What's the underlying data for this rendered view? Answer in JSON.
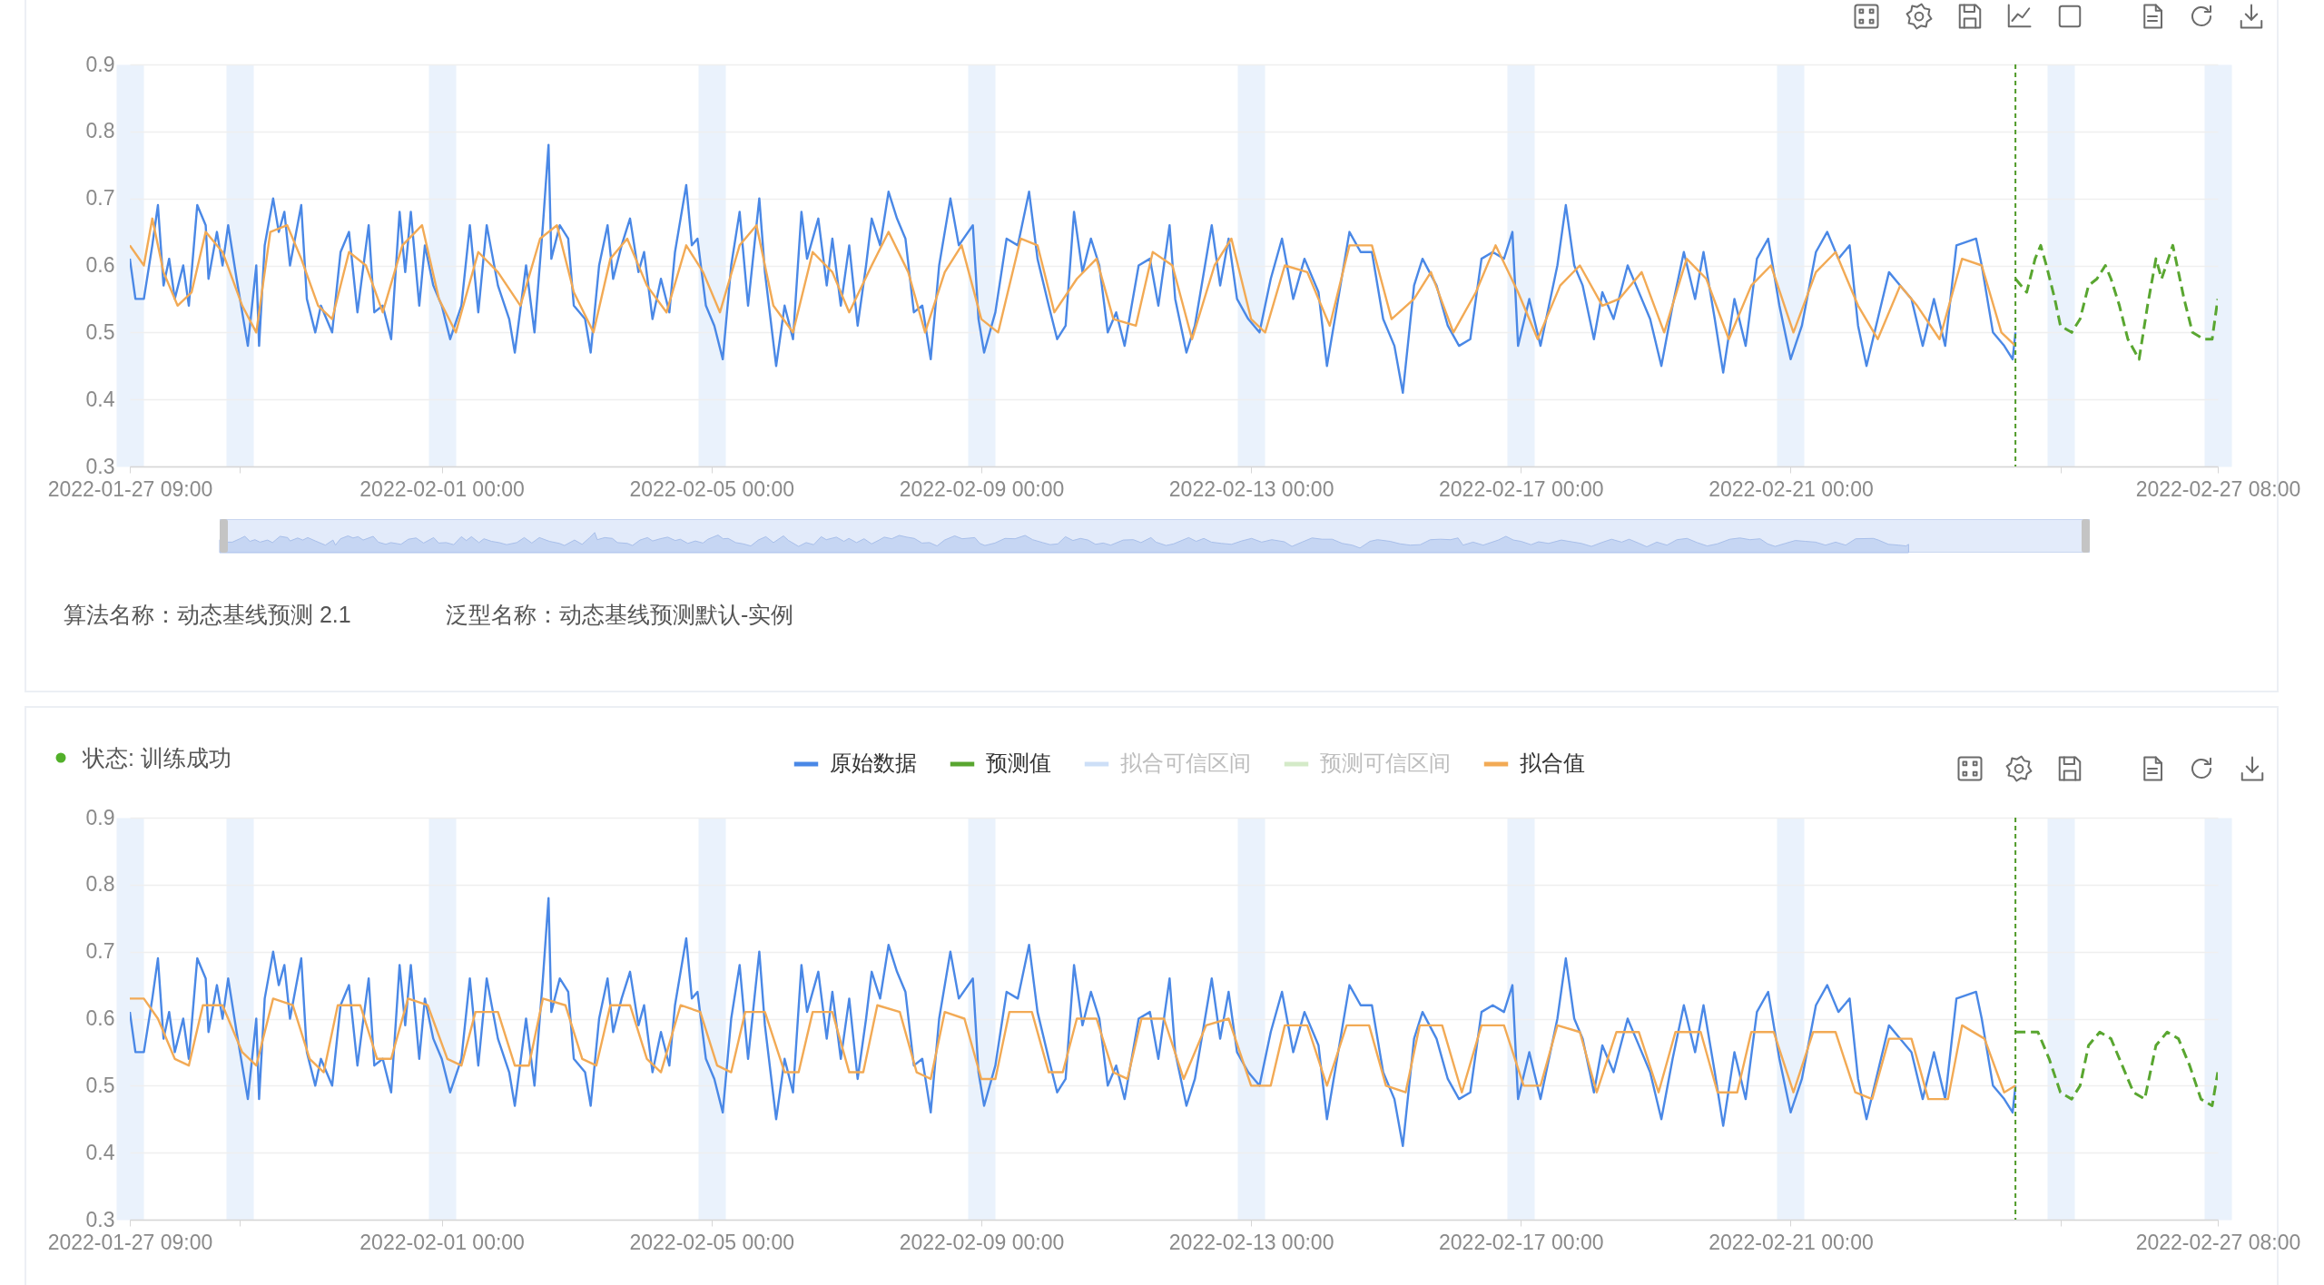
{
  "chart_data": [
    {
      "type": "line",
      "annotations": [
        "算法名称：动态基线预测 2.1",
        "泛型名称：动态基线预测默认-实例"
      ],
      "xlim": [
        "2022-01-27T09:00",
        "2022-02-27T08:00"
      ],
      "xticks": [
        {
          "value": "2022-01-27T09:00",
          "label": "2022-01-27 09:00"
        },
        {
          "value": "2022-01-29T00:00",
          "label": null
        },
        {
          "value": "2022-02-01T00:00",
          "label": "2022-02-01 00:00"
        },
        {
          "value": "2022-02-05T00:00",
          "label": "2022-02-05 00:00"
        },
        {
          "value": "2022-02-09T00:00",
          "label": "2022-02-09 00:00"
        },
        {
          "value": "2022-02-13T00:00",
          "label": "2022-02-13 00:00"
        },
        {
          "value": "2022-02-17T00:00",
          "label": "2022-02-17 00:00"
        },
        {
          "value": "2022-02-21T00:00",
          "label": "2022-02-21 00:00"
        },
        {
          "value": "2022-02-25T00:00",
          "label": null
        },
        {
          "value": "2022-02-27T08:00",
          "label": "2022-02-27 08:00"
        }
      ],
      "ylim": [
        0.3,
        0.9
      ],
      "yticks": [
        0.3,
        0.4,
        0.5,
        0.6,
        0.7,
        0.8,
        0.9
      ],
      "grid": true,
      "ref_lines": [
        {
          "axis": "x",
          "value": "2022-02-24T08:00",
          "color": "#4f9a28",
          "line_style": "dashed"
        }
      ],
      "series": [
        {
          "color": "#4a88e6",
          "x": [
            "2022-01-27T09:00",
            "2022-01-27T11:00",
            "2022-01-27T14:00",
            "2022-01-27T17:00",
            "2022-01-27T19:00",
            "2022-01-27T21:00",
            "2022-01-27T23:00",
            "2022-01-28T01:00",
            "2022-01-28T04:00",
            "2022-01-28T06:00",
            "2022-01-28T09:00",
            "2022-01-28T12:00",
            "2022-01-28T13:00",
            "2022-01-28T16:00",
            "2022-01-28T18:00",
            "2022-01-28T20:00",
            "2022-01-28T23:00",
            "2022-01-29T03:00",
            "2022-01-29T06:00",
            "2022-01-29T07:00",
            "2022-01-29T09:00",
            "2022-01-29T12:00",
            "2022-01-29T14:00",
            "2022-01-29T16:00",
            "2022-01-29T18:00",
            "2022-01-29T22:00",
            "2022-01-30T00:00",
            "2022-01-30T03:00",
            "2022-01-30T05:00",
            "2022-01-30T09:00",
            "2022-01-30T12:00",
            "2022-01-30T15:00",
            "2022-01-30T18:00",
            "2022-01-30T22:00",
            "2022-01-31T00:00",
            "2022-01-31T03:00",
            "2022-01-31T06:00",
            "2022-01-31T09:00",
            "2022-01-31T11:00",
            "2022-01-31T13:00",
            "2022-01-31T16:00",
            "2022-01-31T18:00",
            "2022-01-31T21:00",
            "2022-02-01T00:00",
            "2022-02-01T03:00",
            "2022-02-01T07:00",
            "2022-02-01T10:00",
            "2022-02-01T13:00",
            "2022-02-01T16:00",
            "2022-02-01T20:00",
            "2022-02-02T00:00",
            "2022-02-02T02:00",
            "2022-02-02T06:00",
            "2022-02-02T09:00",
            "2022-02-02T12:00",
            "2022-02-02T14:00",
            "2022-02-02T15:00",
            "2022-02-02T18:00",
            "2022-02-02T21:00",
            "2022-02-02T23:00",
            "2022-02-03T03:00",
            "2022-02-03T05:00",
            "2022-02-03T08:00",
            "2022-02-03T11:00",
            "2022-02-03T13:00",
            "2022-02-03T16:00",
            "2022-02-03T19:00",
            "2022-02-03T22:00",
            "2022-02-04T00:00",
            "2022-02-04T03:00",
            "2022-02-04T06:00",
            "2022-02-04T09:00",
            "2022-02-04T11:00",
            "2022-02-04T15:00",
            "2022-02-04T17:00",
            "2022-02-04T19:00",
            "2022-02-04T22:00",
            "2022-02-05T01:00",
            "2022-02-05T04:00",
            "2022-02-05T07:00",
            "2022-02-05T10:00",
            "2022-02-05T13:00",
            "2022-02-05T17:00",
            "2022-02-05T19:00",
            "2022-02-05T23:00",
            "2022-02-06T02:00",
            "2022-02-06T05:00",
            "2022-02-06T08:00",
            "2022-02-06T10:00",
            "2022-02-06T14:00",
            "2022-02-06T17:00",
            "2022-02-06T19:00",
            "2022-02-06T22:00",
            "2022-02-07T01:00",
            "2022-02-07T04:00",
            "2022-02-07T07:00",
            "2022-02-07T09:00",
            "2022-02-07T12:00",
            "2022-02-07T15:00",
            "2022-02-07T18:00",
            "2022-02-07T21:00",
            "2022-02-08T00:00",
            "2022-02-08T03:00",
            "2022-02-08T06:00",
            "2022-02-08T09:00",
            "2022-02-08T13:00",
            "2022-02-08T16:00",
            "2022-02-08T21:00",
            "2022-02-08T23:00",
            "2022-02-09T01:00",
            "2022-02-09T05:00",
            "2022-02-09T09:00",
            "2022-02-09T13:00",
            "2022-02-09T17:00",
            "2022-02-09T20:00",
            "2022-02-10T00:00",
            "2022-02-10T03:00",
            "2022-02-10T06:00",
            "2022-02-10T09:00",
            "2022-02-10T12:00",
            "2022-02-10T15:00",
            "2022-02-10T18:00",
            "2022-02-10T21:00",
            "2022-02-11T00:00",
            "2022-02-11T03:00",
            "2022-02-11T08:00",
            "2022-02-11T12:00",
            "2022-02-11T15:00",
            "2022-02-11T19:00",
            "2022-02-11T21:00",
            "2022-02-12T01:00",
            "2022-02-12T04:00",
            "2022-02-12T10:00",
            "2022-02-12T13:00",
            "2022-02-12T16:00",
            "2022-02-12T19:00",
            "2022-02-12T23:00",
            "2022-02-13T03:00",
            "2022-02-13T07:00",
            "2022-02-13T11:00",
            "2022-02-13T15:00",
            "2022-02-13T19:00",
            "2022-02-14T00:00",
            "2022-02-14T03:00",
            "2022-02-14T07:00",
            "2022-02-14T11:00",
            "2022-02-14T15:00",
            "2022-02-14T19:00",
            "2022-02-14T23:00",
            "2022-02-15T03:00",
            "2022-02-15T06:00",
            "2022-02-15T10:00",
            "2022-02-15T13:00",
            "2022-02-15T18:00",
            "2022-02-15T22:00",
            "2022-02-16T02:00",
            "2022-02-16T06:00",
            "2022-02-16T10:00",
            "2022-02-16T14:00",
            "2022-02-16T18:00",
            "2022-02-16T21:00",
            "2022-02-16T23:00",
            "2022-02-17T03:00",
            "2022-02-17T07:00",
            "2022-02-17T13:00",
            "2022-02-17T16:00",
            "2022-02-17T19:00",
            "2022-02-17T22:00",
            "2022-02-18T02:00",
            "2022-02-18T05:00",
            "2022-02-18T09:00",
            "2022-02-18T14:00",
            "2022-02-18T17:00",
            "2022-02-18T22:00",
            "2022-02-19T02:00",
            "2022-02-19T06:00",
            "2022-02-19T10:00",
            "2022-02-19T14:00",
            "2022-02-19T17:00",
            "2022-02-19T21:00",
            "2022-02-20T00:00",
            "2022-02-20T04:00",
            "2022-02-20T08:00",
            "2022-02-20T12:00",
            "2022-02-20T16:00",
            "2022-02-20T20:00",
            "2022-02-21T00:00",
            "2022-02-21T04:00",
            "2022-02-21T09:00",
            "2022-02-21T13:00",
            "2022-02-21T17:00",
            "2022-02-21T21:00",
            "2022-02-22T00:00",
            "2022-02-22T03:00",
            "2022-02-22T07:00",
            "2022-02-22T11:00",
            "2022-02-22T15:00",
            "2022-02-22T19:00",
            "2022-02-22T23:00",
            "2022-02-23T03:00",
            "2022-02-23T07:00",
            "2022-02-23T11:00",
            "2022-02-23T18:00",
            "2022-02-23T20:00",
            "2022-02-24T00:00",
            "2022-02-24T04:00",
            "2022-02-24T07:00",
            "2022-02-24T08:00"
          ],
          "values": [
            0.61,
            0.55,
            0.55,
            0.63,
            0.69,
            0.57,
            0.61,
            0.55,
            0.6,
            0.54,
            0.69,
            0.66,
            0.58,
            0.65,
            0.6,
            0.66,
            0.58,
            0.48,
            0.6,
            0.48,
            0.63,
            0.7,
            0.65,
            0.68,
            0.6,
            0.69,
            0.55,
            0.5,
            0.54,
            0.5,
            0.62,
            0.65,
            0.53,
            0.66,
            0.53,
            0.54,
            0.49,
            0.68,
            0.59,
            0.68,
            0.54,
            0.63,
            0.57,
            0.54,
            0.49,
            0.54,
            0.66,
            0.53,
            0.66,
            0.57,
            0.52,
            0.47,
            0.6,
            0.5,
            0.66,
            0.78,
            0.61,
            0.66,
            0.64,
            0.54,
            0.52,
            0.47,
            0.6,
            0.66,
            0.58,
            0.63,
            0.67,
            0.59,
            0.62,
            0.52,
            0.58,
            0.53,
            0.62,
            0.72,
            0.63,
            0.64,
            0.54,
            0.51,
            0.46,
            0.6,
            0.68,
            0.54,
            0.7,
            0.59,
            0.45,
            0.54,
            0.49,
            0.68,
            0.61,
            0.67,
            0.57,
            0.64,
            0.54,
            0.63,
            0.51,
            0.6,
            0.67,
            0.63,
            0.71,
            0.67,
            0.64,
            0.53,
            0.54,
            0.46,
            0.6,
            0.7,
            0.63,
            0.66,
            0.52,
            0.47,
            0.53,
            0.64,
            0.63,
            0.71,
            0.61,
            0.54,
            0.49,
            0.51,
            0.68,
            0.59,
            0.64,
            0.6,
            0.5,
            0.53,
            0.48,
            0.6,
            0.61,
            0.54,
            0.66,
            0.55,
            0.47,
            0.51,
            0.66,
            0.57,
            0.64,
            0.55,
            0.52,
            0.5,
            0.58,
            0.64,
            0.55,
            0.61,
            0.56,
            0.45,
            0.55,
            0.65,
            0.62,
            0.62,
            0.52,
            0.48,
            0.41,
            0.57,
            0.61,
            0.57,
            0.51,
            0.48,
            0.49,
            0.61,
            0.62,
            0.61,
            0.65,
            0.48,
            0.55,
            0.48,
            0.6,
            0.69,
            0.6,
            0.57,
            0.49,
            0.56,
            0.52,
            0.6,
            0.57,
            0.52,
            0.45,
            0.54,
            0.62,
            0.55,
            0.62,
            0.52,
            0.44,
            0.55,
            0.48,
            0.61,
            0.64,
            0.54,
            0.46,
            0.51,
            0.62,
            0.65,
            0.61,
            0.63,
            0.51,
            0.45,
            0.52,
            0.59,
            0.57,
            0.55,
            0.48,
            0.55,
            0.48,
            0.63,
            0.64,
            0.6,
            0.5,
            0.48,
            0.46,
            0.5
          ]
        },
        {
          "color": "#59a630",
          "line_style": "dashed",
          "x": [
            "2022-02-24T08:00",
            "2022-02-24T12:00",
            "2022-02-24T15:00",
            "2022-02-24T17:00",
            "2022-02-24T19:00",
            "2022-02-24T22:00",
            "2022-02-25T00:00",
            "2022-02-25T04:00",
            "2022-02-25T07:00",
            "2022-02-25T10:00",
            "2022-02-25T13:00",
            "2022-02-25T16:00",
            "2022-02-25T18:00",
            "2022-02-25T21:00",
            "2022-02-26T00:00",
            "2022-02-26T04:00",
            "2022-02-26T07:00",
            "2022-02-26T10:00",
            "2022-02-26T12:00",
            "2022-02-26T16:00",
            "2022-02-26T20:00",
            "2022-02-26T23:00",
            "2022-02-27T03:00",
            "2022-02-27T06:00",
            "2022-02-27T08:00"
          ],
          "values": [
            0.58,
            0.56,
            0.61,
            0.63,
            0.6,
            0.55,
            0.51,
            0.5,
            0.52,
            0.57,
            0.58,
            0.6,
            0.58,
            0.54,
            0.49,
            0.46,
            0.54,
            0.61,
            0.58,
            0.63,
            0.55,
            0.5,
            0.49,
            0.49,
            0.55
          ]
        },
        {
          "color": "#f2aa55",
          "x": [
            "2022-01-27T09:00",
            "2022-01-27T14:00",
            "2022-01-27T17:00",
            "2022-01-27T21:00",
            "2022-01-28T02:00",
            "2022-01-28T07:00",
            "2022-01-28T12:00",
            "2022-01-28T18:00",
            "2022-01-29T01:00",
            "2022-01-29T06:00",
            "2022-01-29T11:00",
            "2022-01-29T17:00",
            "2022-01-29T22:00",
            "2022-01-30T04:00",
            "2022-01-30T09:00",
            "2022-01-30T15:00",
            "2022-01-30T21:00",
            "2022-01-31T03:00",
            "2022-01-31T10:00",
            "2022-01-31T17:00",
            "2022-01-31T23:00",
            "2022-02-01T05:00",
            "2022-02-01T13:00",
            "2022-02-01T20:00",
            "2022-02-02T04:00",
            "2022-02-02T11:00",
            "2022-02-02T17:00",
            "2022-02-02T23:00",
            "2022-02-03T06:00",
            "2022-02-03T12:00",
            "2022-02-03T18:00",
            "2022-02-04T01:00",
            "2022-02-04T08:00",
            "2022-02-04T15:00",
            "2022-02-04T21:00",
            "2022-02-05T03:00",
            "2022-02-05T10:00",
            "2022-02-05T16:00",
            "2022-02-05T22:00",
            "2022-02-06T05:00",
            "2022-02-06T12:00",
            "2022-02-06T19:00",
            "2022-02-07T01:00",
            "2022-02-07T09:00",
            "2022-02-07T15:00",
            "2022-02-07T22:00",
            "2022-02-08T04:00",
            "2022-02-08T11:00",
            "2022-02-08T17:00",
            "2022-02-09T00:00",
            "2022-02-09T06:00",
            "2022-02-09T14:00",
            "2022-02-09T20:00",
            "2022-02-10T02:00",
            "2022-02-10T10:00",
            "2022-02-10T17:00",
            "2022-02-10T23:00",
            "2022-02-11T07:00",
            "2022-02-11T13:00",
            "2022-02-11T20:00",
            "2022-02-12T03:00",
            "2022-02-12T11:00",
            "2022-02-12T17:00",
            "2022-02-13T00:00",
            "2022-02-13T05:00",
            "2022-02-13T12:00",
            "2022-02-13T20:00",
            "2022-02-14T04:00",
            "2022-02-14T11:00",
            "2022-02-14T19:00",
            "2022-02-15T02:00",
            "2022-02-15T10:00",
            "2022-02-15T16:00",
            "2022-02-16T00:00",
            "2022-02-16T08:00",
            "2022-02-16T15:00",
            "2022-02-16T23:00",
            "2022-02-17T06:00",
            "2022-02-17T14:00",
            "2022-02-17T21:00",
            "2022-02-18T05:00",
            "2022-02-18T11:00",
            "2022-02-18T19:00",
            "2022-02-19T03:00",
            "2022-02-19T11:00",
            "2022-02-19T18:00",
            "2022-02-20T02:00",
            "2022-02-20T10:00",
            "2022-02-20T17:00",
            "2022-02-21T01:00",
            "2022-02-21T09:00",
            "2022-02-21T16:00",
            "2022-02-22T00:00",
            "2022-02-22T07:00",
            "2022-02-22T15:00",
            "2022-02-22T21:00",
            "2022-02-23T05:00",
            "2022-02-23T13:00",
            "2022-02-23T20:00",
            "2022-02-24T03:00",
            "2022-02-24T08:00"
          ],
          "values": [
            0.63,
            0.6,
            0.67,
            0.59,
            0.54,
            0.56,
            0.65,
            0.62,
            0.54,
            0.5,
            0.65,
            0.66,
            0.61,
            0.54,
            0.52,
            0.62,
            0.6,
            0.53,
            0.63,
            0.66,
            0.55,
            0.5,
            0.62,
            0.59,
            0.54,
            0.64,
            0.66,
            0.56,
            0.5,
            0.61,
            0.64,
            0.57,
            0.53,
            0.63,
            0.59,
            0.53,
            0.63,
            0.66,
            0.54,
            0.5,
            0.62,
            0.59,
            0.53,
            0.6,
            0.65,
            0.59,
            0.5,
            0.59,
            0.63,
            0.52,
            0.5,
            0.64,
            0.63,
            0.53,
            0.58,
            0.61,
            0.52,
            0.51,
            0.62,
            0.6,
            0.49,
            0.6,
            0.64,
            0.52,
            0.5,
            0.6,
            0.59,
            0.51,
            0.63,
            0.63,
            0.52,
            0.55,
            0.59,
            0.5,
            0.56,
            0.63,
            0.56,
            0.49,
            0.57,
            0.6,
            0.54,
            0.55,
            0.59,
            0.5,
            0.61,
            0.58,
            0.49,
            0.57,
            0.6,
            0.5,
            0.59,
            0.62,
            0.54,
            0.49,
            0.57,
            0.54,
            0.49,
            0.61,
            0.6,
            0.5,
            0.48
          ]
        }
      ]
    },
    {
      "type": "line",
      "annotations": [
        "状态: 训练成功"
      ],
      "legend": "top",
      "xlim": [
        "2022-01-27T09:00",
        "2022-02-27T08:00"
      ],
      "xticks": [
        {
          "value": "2022-01-27T09:00",
          "label": "2022-01-27 09:00"
        },
        {
          "value": "2022-01-29T00:00",
          "label": null
        },
        {
          "value": "2022-02-01T00:00",
          "label": "2022-02-01 00:00"
        },
        {
          "value": "2022-02-05T00:00",
          "label": "2022-02-05 00:00"
        },
        {
          "value": "2022-02-09T00:00",
          "label": "2022-02-09 00:00"
        },
        {
          "value": "2022-02-13T00:00",
          "label": "2022-02-13 00:00"
        },
        {
          "value": "2022-02-17T00:00",
          "label": "2022-02-17 00:00"
        },
        {
          "value": "2022-02-21T00:00",
          "label": "2022-02-21 00:00"
        },
        {
          "value": "2022-02-25T00:00",
          "label": null
        },
        {
          "value": "2022-02-27T08:00",
          "label": "2022-02-27 08:00"
        }
      ],
      "ylim": [
        0.3,
        0.9
      ],
      "yticks": [
        0.3,
        0.4,
        0.5,
        0.6,
        0.7,
        0.8,
        0.9
      ],
      "grid": true,
      "ref_lines": [
        {
          "axis": "x",
          "value": "2022-02-24T08:00",
          "color": "#4f9a28",
          "line_style": "dashed"
        }
      ],
      "series": [
        {
          "name": "原始数据",
          "color": "#4a88e6",
          "x": [
            "2022-01-27T09:00",
            "2022-01-27T11:00",
            "2022-01-27T14:00",
            "2022-01-27T17:00",
            "2022-01-27T19:00",
            "2022-01-27T21:00",
            "2022-01-27T23:00",
            "2022-01-28T01:00",
            "2022-01-28T04:00",
            "2022-01-28T06:00",
            "2022-01-28T09:00",
            "2022-01-28T12:00",
            "2022-01-28T13:00",
            "2022-01-28T16:00",
            "2022-01-28T18:00",
            "2022-01-28T20:00",
            "2022-01-28T23:00",
            "2022-01-29T03:00",
            "2022-01-29T06:00",
            "2022-01-29T07:00",
            "2022-01-29T09:00",
            "2022-01-29T12:00",
            "2022-01-29T14:00",
            "2022-01-29T16:00",
            "2022-01-29T18:00",
            "2022-01-29T22:00",
            "2022-01-30T00:00",
            "2022-01-30T03:00",
            "2022-01-30T05:00",
            "2022-01-30T09:00",
            "2022-01-30T12:00",
            "2022-01-30T15:00",
            "2022-01-30T18:00",
            "2022-01-30T22:00",
            "2022-01-31T00:00",
            "2022-01-31T03:00",
            "2022-01-31T06:00",
            "2022-01-31T09:00",
            "2022-01-31T11:00",
            "2022-01-31T13:00",
            "2022-01-31T16:00",
            "2022-01-31T18:00",
            "2022-01-31T21:00",
            "2022-02-01T00:00",
            "2022-02-01T03:00",
            "2022-02-01T07:00",
            "2022-02-01T10:00",
            "2022-02-01T13:00",
            "2022-02-01T16:00",
            "2022-02-01T20:00",
            "2022-02-02T00:00",
            "2022-02-02T02:00",
            "2022-02-02T06:00",
            "2022-02-02T09:00",
            "2022-02-02T12:00",
            "2022-02-02T14:00",
            "2022-02-02T15:00",
            "2022-02-02T18:00",
            "2022-02-02T21:00",
            "2022-02-02T23:00",
            "2022-02-03T03:00",
            "2022-02-03T05:00",
            "2022-02-03T08:00",
            "2022-02-03T11:00",
            "2022-02-03T13:00",
            "2022-02-03T16:00",
            "2022-02-03T19:00",
            "2022-02-03T22:00",
            "2022-02-04T00:00",
            "2022-02-04T03:00",
            "2022-02-04T06:00",
            "2022-02-04T09:00",
            "2022-02-04T11:00",
            "2022-02-04T15:00",
            "2022-02-04T17:00",
            "2022-02-04T19:00",
            "2022-02-04T22:00",
            "2022-02-05T01:00",
            "2022-02-05T04:00",
            "2022-02-05T07:00",
            "2022-02-05T10:00",
            "2022-02-05T13:00",
            "2022-02-05T17:00",
            "2022-02-05T19:00",
            "2022-02-05T23:00",
            "2022-02-06T02:00",
            "2022-02-06T05:00",
            "2022-02-06T08:00",
            "2022-02-06T10:00",
            "2022-02-06T14:00",
            "2022-02-06T17:00",
            "2022-02-06T19:00",
            "2022-02-06T22:00",
            "2022-02-07T01:00",
            "2022-02-07T04:00",
            "2022-02-07T07:00",
            "2022-02-07T09:00",
            "2022-02-07T12:00",
            "2022-02-07T15:00",
            "2022-02-07T18:00",
            "2022-02-07T21:00",
            "2022-02-08T00:00",
            "2022-02-08T03:00",
            "2022-02-08T06:00",
            "2022-02-08T09:00",
            "2022-02-08T13:00",
            "2022-02-08T16:00",
            "2022-02-08T21:00",
            "2022-02-08T23:00",
            "2022-02-09T01:00",
            "2022-02-09T05:00",
            "2022-02-09T09:00",
            "2022-02-09T13:00",
            "2022-02-09T17:00",
            "2022-02-09T20:00",
            "2022-02-10T00:00",
            "2022-02-10T03:00",
            "2022-02-10T06:00",
            "2022-02-10T09:00",
            "2022-02-10T12:00",
            "2022-02-10T15:00",
            "2022-02-10T18:00",
            "2022-02-10T21:00",
            "2022-02-11T00:00",
            "2022-02-11T03:00",
            "2022-02-11T08:00",
            "2022-02-11T12:00",
            "2022-02-11T15:00",
            "2022-02-11T19:00",
            "2022-02-11T21:00",
            "2022-02-12T01:00",
            "2022-02-12T04:00",
            "2022-02-12T10:00",
            "2022-02-12T13:00",
            "2022-02-12T16:00",
            "2022-02-12T19:00",
            "2022-02-12T23:00",
            "2022-02-13T03:00",
            "2022-02-13T07:00",
            "2022-02-13T11:00",
            "2022-02-13T15:00",
            "2022-02-13T19:00",
            "2022-02-14T00:00",
            "2022-02-14T03:00",
            "2022-02-14T07:00",
            "2022-02-14T11:00",
            "2022-02-14T15:00",
            "2022-02-14T19:00",
            "2022-02-14T23:00",
            "2022-02-15T03:00",
            "2022-02-15T06:00",
            "2022-02-15T10:00",
            "2022-02-15T13:00",
            "2022-02-15T18:00",
            "2022-02-15T22:00",
            "2022-02-16T02:00",
            "2022-02-16T06:00",
            "2022-02-16T10:00",
            "2022-02-16T14:00",
            "2022-02-16T18:00",
            "2022-02-16T21:00",
            "2022-02-16T23:00",
            "2022-02-17T03:00",
            "2022-02-17T07:00",
            "2022-02-17T13:00",
            "2022-02-17T16:00",
            "2022-02-17T19:00",
            "2022-02-17T22:00",
            "2022-02-18T02:00",
            "2022-02-18T05:00",
            "2022-02-18T09:00",
            "2022-02-18T14:00",
            "2022-02-18T17:00",
            "2022-02-18T22:00",
            "2022-02-19T02:00",
            "2022-02-19T06:00",
            "2022-02-19T10:00",
            "2022-02-19T14:00",
            "2022-02-19T17:00",
            "2022-02-19T21:00",
            "2022-02-20T00:00",
            "2022-02-20T04:00",
            "2022-02-20T08:00",
            "2022-02-20T12:00",
            "2022-02-20T16:00",
            "2022-02-20T20:00",
            "2022-02-21T00:00",
            "2022-02-21T04:00",
            "2022-02-21T09:00",
            "2022-02-21T13:00",
            "2022-02-21T17:00",
            "2022-02-21T21:00",
            "2022-02-22T00:00",
            "2022-02-22T03:00",
            "2022-02-22T07:00",
            "2022-02-22T11:00",
            "2022-02-22T15:00",
            "2022-02-22T19:00",
            "2022-02-22T23:00",
            "2022-02-23T03:00",
            "2022-02-23T07:00",
            "2022-02-23T11:00",
            "2022-02-23T18:00",
            "2022-02-23T20:00",
            "2022-02-24T00:00",
            "2022-02-24T04:00",
            "2022-02-24T07:00",
            "2022-02-24T08:00"
          ],
          "values": [
            0.61,
            0.55,
            0.55,
            0.63,
            0.69,
            0.57,
            0.61,
            0.55,
            0.6,
            0.54,
            0.69,
            0.66,
            0.58,
            0.65,
            0.6,
            0.66,
            0.58,
            0.48,
            0.6,
            0.48,
            0.63,
            0.7,
            0.65,
            0.68,
            0.6,
            0.69,
            0.55,
            0.5,
            0.54,
            0.5,
            0.62,
            0.65,
            0.53,
            0.66,
            0.53,
            0.54,
            0.49,
            0.68,
            0.59,
            0.68,
            0.54,
            0.63,
            0.57,
            0.54,
            0.49,
            0.54,
            0.66,
            0.53,
            0.66,
            0.57,
            0.52,
            0.47,
            0.6,
            0.5,
            0.66,
            0.78,
            0.61,
            0.66,
            0.64,
            0.54,
            0.52,
            0.47,
            0.6,
            0.66,
            0.58,
            0.63,
            0.67,
            0.59,
            0.62,
            0.52,
            0.58,
            0.53,
            0.62,
            0.72,
            0.63,
            0.64,
            0.54,
            0.51,
            0.46,
            0.6,
            0.68,
            0.54,
            0.7,
            0.59,
            0.45,
            0.54,
            0.49,
            0.68,
            0.61,
            0.67,
            0.57,
            0.64,
            0.54,
            0.63,
            0.51,
            0.6,
            0.67,
            0.63,
            0.71,
            0.67,
            0.64,
            0.53,
            0.54,
            0.46,
            0.6,
            0.7,
            0.63,
            0.66,
            0.52,
            0.47,
            0.53,
            0.64,
            0.63,
            0.71,
            0.61,
            0.54,
            0.49,
            0.51,
            0.68,
            0.59,
            0.64,
            0.6,
            0.5,
            0.53,
            0.48,
            0.6,
            0.61,
            0.54,
            0.66,
            0.55,
            0.47,
            0.51,
            0.66,
            0.57,
            0.64,
            0.55,
            0.52,
            0.5,
            0.58,
            0.64,
            0.55,
            0.61,
            0.56,
            0.45,
            0.55,
            0.65,
            0.62,
            0.62,
            0.52,
            0.48,
            0.41,
            0.57,
            0.61,
            0.57,
            0.51,
            0.48,
            0.49,
            0.61,
            0.62,
            0.61,
            0.65,
            0.48,
            0.55,
            0.48,
            0.6,
            0.69,
            0.6,
            0.57,
            0.49,
            0.56,
            0.52,
            0.6,
            0.57,
            0.52,
            0.45,
            0.54,
            0.62,
            0.55,
            0.62,
            0.52,
            0.44,
            0.55,
            0.48,
            0.61,
            0.64,
            0.54,
            0.46,
            0.51,
            0.62,
            0.65,
            0.61,
            0.63,
            0.51,
            0.45,
            0.52,
            0.59,
            0.57,
            0.55,
            0.48,
            0.55,
            0.48,
            0.63,
            0.64,
            0.6,
            0.5,
            0.48,
            0.46,
            0.5
          ]
        },
        {
          "name": "预测值",
          "color": "#59a630",
          "line_style": "dashed",
          "x": [
            "2022-02-24T08:00",
            "2022-02-24T12:00",
            "2022-02-24T16:00",
            "2022-02-24T20:00",
            "2022-02-25T00:00",
            "2022-02-25T04:00",
            "2022-02-25T07:00",
            "2022-02-25T10:00",
            "2022-02-25T14:00",
            "2022-02-25T18:00",
            "2022-02-25T22:00",
            "2022-02-26T02:00",
            "2022-02-26T06:00",
            "2022-02-26T10:00",
            "2022-02-26T14:00",
            "2022-02-26T18:00",
            "2022-02-26T22:00",
            "2022-02-27T02:00",
            "2022-02-27T06:00",
            "2022-02-27T08:00"
          ],
          "values": [
            0.58,
            0.58,
            0.58,
            0.54,
            0.49,
            0.48,
            0.5,
            0.56,
            0.58,
            0.57,
            0.53,
            0.49,
            0.48,
            0.56,
            0.58,
            0.57,
            0.53,
            0.48,
            0.47,
            0.52
          ]
        },
        {
          "name": "拟合可信区间",
          "color": "#cddff7"
        },
        {
          "name": "预测可信区间",
          "color": "#d4eac8"
        },
        {
          "name": "拟合值",
          "color": "#f2aa55",
          "x": [
            "2022-01-27T09:00",
            "2022-01-27T14:00",
            "2022-01-27T19:00",
            "2022-01-28T01:00",
            "2022-01-28T06:00",
            "2022-01-28T11:00",
            "2022-01-28T18:00",
            "2022-01-29T01:00",
            "2022-01-29T06:00",
            "2022-01-29T12:00",
            "2022-01-29T19:00",
            "2022-01-30T01:00",
            "2022-01-30T06:00",
            "2022-01-30T11:00",
            "2022-01-30T19:00",
            "2022-01-31T01:00",
            "2022-01-31T06:00",
            "2022-01-31T12:00",
            "2022-01-31T19:00",
            "2022-02-01T02:00",
            "2022-02-01T07:00",
            "2022-02-01T12:00",
            "2022-02-01T20:00",
            "2022-02-02T02:00",
            "2022-02-02T07:00",
            "2022-02-02T12:00",
            "2022-02-02T20:00",
            "2022-02-03T02:00",
            "2022-02-03T07:00",
            "2022-02-03T12:00",
            "2022-02-03T19:00",
            "2022-02-04T01:00",
            "2022-02-04T06:00",
            "2022-02-04T13:00",
            "2022-02-04T20:00",
            "2022-02-05T02:00",
            "2022-02-05T07:00",
            "2022-02-05T12:00",
            "2022-02-05T19:00",
            "2022-02-06T02:00",
            "2022-02-06T07:00",
            "2022-02-06T12:00",
            "2022-02-06T19:00",
            "2022-02-07T01:00",
            "2022-02-07T06:00",
            "2022-02-07T11:00",
            "2022-02-07T19:00",
            "2022-02-08T01:00",
            "2022-02-08T06:00",
            "2022-02-08T11:00",
            "2022-02-08T18:00",
            "2022-02-09T00:00",
            "2022-02-09T05:00",
            "2022-02-09T10:00",
            "2022-02-09T18:00",
            "2022-02-10T00:00",
            "2022-02-10T05:00",
            "2022-02-10T10:00",
            "2022-02-10T17:00",
            "2022-02-10T23:00",
            "2022-02-11T04:00",
            "2022-02-11T09:00",
            "2022-02-11T17:00",
            "2022-02-12T00:00",
            "2022-02-12T08:00",
            "2022-02-12T16:00",
            "2022-02-13T00:00",
            "2022-02-13T07:00",
            "2022-02-13T12:00",
            "2022-02-13T20:00",
            "2022-02-14T03:00",
            "2022-02-14T10:00",
            "2022-02-14T18:00",
            "2022-02-15T00:00",
            "2022-02-15T07:00",
            "2022-02-15T12:00",
            "2022-02-15T20:00",
            "2022-02-16T03:00",
            "2022-02-16T10:00",
            "2022-02-16T18:00",
            "2022-02-17T01:00",
            "2022-02-17T07:00",
            "2022-02-17T13:00",
            "2022-02-17T21:00",
            "2022-02-18T03:00",
            "2022-02-18T10:00",
            "2022-02-18T18:00",
            "2022-02-19T01:00",
            "2022-02-19T07:00",
            "2022-02-19T16:00",
            "2022-02-19T22:00",
            "2022-02-20T05:00",
            "2022-02-20T10:00",
            "2022-02-20T18:00",
            "2022-02-21T01:00",
            "2022-02-21T08:00",
            "2022-02-21T16:00",
            "2022-02-21T23:00",
            "2022-02-22T05:00",
            "2022-02-22T11:00",
            "2022-02-22T19:00",
            "2022-02-23T01:00",
            "2022-02-23T08:00",
            "2022-02-23T13:00",
            "2022-02-23T21:00",
            "2022-02-24T04:00",
            "2022-02-24T08:00"
          ],
          "values": [
            0.63,
            0.63,
            0.6,
            0.54,
            0.53,
            0.62,
            0.62,
            0.55,
            0.53,
            0.63,
            0.62,
            0.54,
            0.52,
            0.62,
            0.62,
            0.54,
            0.54,
            0.63,
            0.62,
            0.54,
            0.53,
            0.61,
            0.61,
            0.53,
            0.53,
            0.63,
            0.62,
            0.54,
            0.53,
            0.62,
            0.62,
            0.54,
            0.52,
            0.62,
            0.61,
            0.53,
            0.52,
            0.61,
            0.61,
            0.52,
            0.52,
            0.61,
            0.61,
            0.52,
            0.52,
            0.62,
            0.61,
            0.52,
            0.51,
            0.61,
            0.6,
            0.51,
            0.51,
            0.61,
            0.61,
            0.52,
            0.52,
            0.6,
            0.6,
            0.52,
            0.51,
            0.6,
            0.6,
            0.51,
            0.59,
            0.6,
            0.5,
            0.5,
            0.59,
            0.59,
            0.5,
            0.59,
            0.59,
            0.5,
            0.49,
            0.59,
            0.59,
            0.49,
            0.59,
            0.59,
            0.5,
            0.5,
            0.59,
            0.58,
            0.49,
            0.58,
            0.58,
            0.49,
            0.58,
            0.58,
            0.49,
            0.49,
            0.58,
            0.58,
            0.49,
            0.58,
            0.58,
            0.49,
            0.48,
            0.57,
            0.57,
            0.48,
            0.48,
            0.59,
            0.57,
            0.49,
            0.5
          ]
        }
      ]
    }
  ]
}
